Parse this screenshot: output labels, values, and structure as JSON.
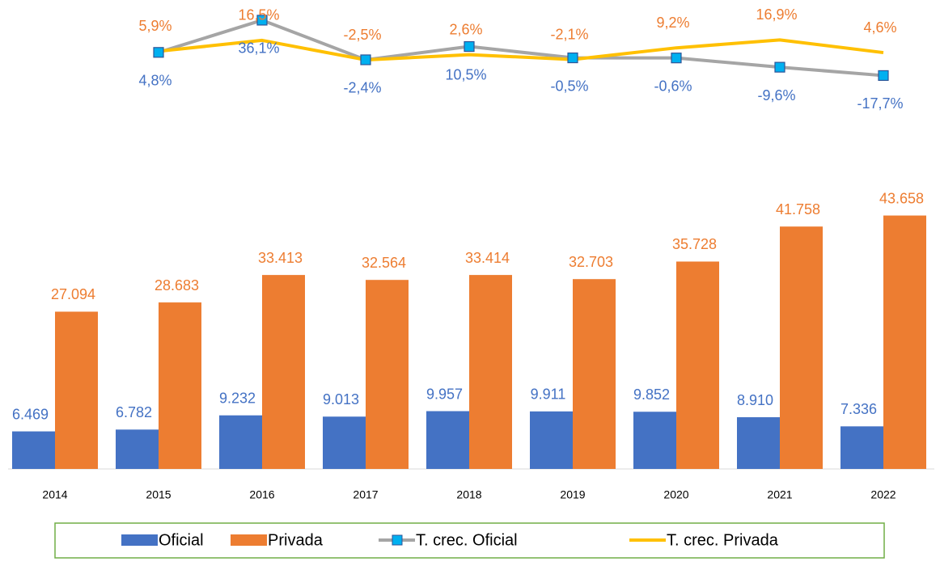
{
  "chart_data": {
    "type": "bar",
    "categories": [
      "2014",
      "2015",
      "2016",
      "2017",
      "2018",
      "2019",
      "2020",
      "2021",
      "2022"
    ],
    "ylim": [
      0,
      78000
    ],
    "y2lim": [
      -400,
      40
    ],
    "series": [
      {
        "name": "Oficial",
        "color": "#4472c4",
        "values": [
          6469,
          6782,
          9232,
          9013,
          9957,
          9911,
          9852,
          8910,
          7336
        ],
        "value_labels": [
          "6.469",
          "6.782",
          "9.232",
          "9.013",
          "9.957",
          "9.911",
          "9.852",
          "8.910",
          "7.336"
        ]
      },
      {
        "name": "Privada",
        "color": "#ed7d31",
        "values": [
          27094,
          28683,
          33413,
          32564,
          33414,
          32703,
          35728,
          41758,
          43658
        ],
        "value_labels": [
          "27.094",
          "28.683",
          "33.413",
          "32.564",
          "33.414",
          "32.703",
          "35.728",
          "41.758",
          "43.658"
        ]
      },
      {
        "name": "T. crec. Oficial",
        "type": "line",
        "axis": "y2",
        "color": "#a5a5a5",
        "marker_color": "#00b0f0",
        "label_color": "#4472c4",
        "values": [
          null,
          4.8,
          36.1,
          -2.4,
          10.5,
          -0.5,
          -0.6,
          -9.6,
          -17.7
        ],
        "value_labels": [
          null,
          "4,8%",
          "36,1%",
          "-2,4%",
          "10,5%",
          "-0,5%",
          "-0,6%",
          "-9,6%",
          "-17,7%"
        ]
      },
      {
        "name": "T. crec. Privada",
        "type": "line",
        "axis": "y2",
        "color": "#ffc000",
        "label_color": "#ed7d31",
        "values": [
          null,
          5.9,
          16.5,
          -2.5,
          2.6,
          -2.1,
          9.2,
          16.9,
          4.6
        ],
        "value_labels": [
          null,
          "5,9%",
          "16,5%",
          "-2,5%",
          "2,6%",
          "-2,1%",
          "9,2%",
          "16,9%",
          "4,6%"
        ]
      }
    ],
    "legend": "bottom"
  }
}
